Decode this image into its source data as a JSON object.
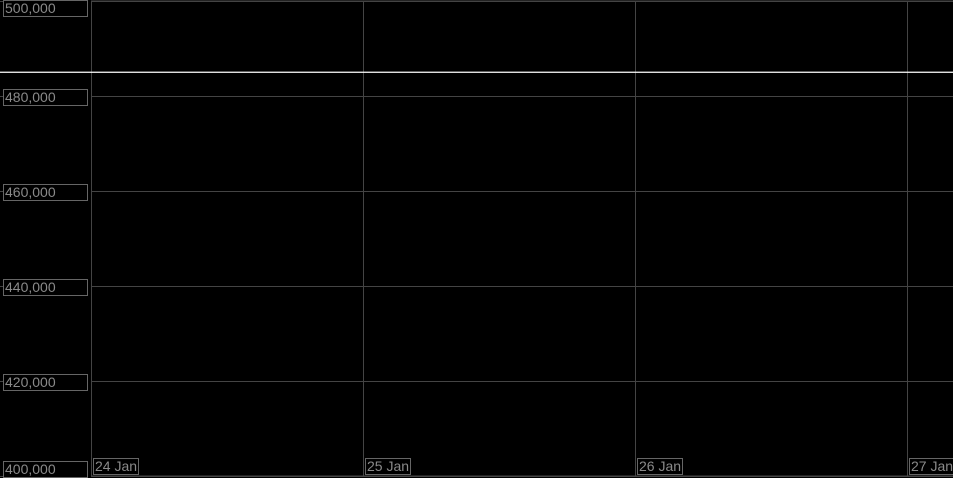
{
  "chart_data": {
    "type": "line",
    "title": "",
    "xlabel": "",
    "ylabel": "",
    "ylim": [
      400000,
      500000
    ],
    "xlim": [
      "2024-01-24",
      "2024-01-27"
    ],
    "yticks": [
      "500,000",
      "480,000",
      "460,000",
      "440,000",
      "420,000",
      "400,000"
    ],
    "ytick_values": [
      500000,
      480000,
      460000,
      440000,
      420000,
      400000
    ],
    "xticks": [
      "24 Jan",
      "25 Jan",
      "26 Jan",
      "27 Jan"
    ],
    "grid": true,
    "series": [
      {
        "values": [
          485000,
          485000
        ],
        "x": [
          "24 Jan",
          "27 Jan"
        ],
        "color": "#ffffff"
      }
    ],
    "colors": {
      "background": "#000000",
      "grid": "#444444",
      "label_text": "#8a8a8a",
      "line": "#ffffff"
    }
  }
}
